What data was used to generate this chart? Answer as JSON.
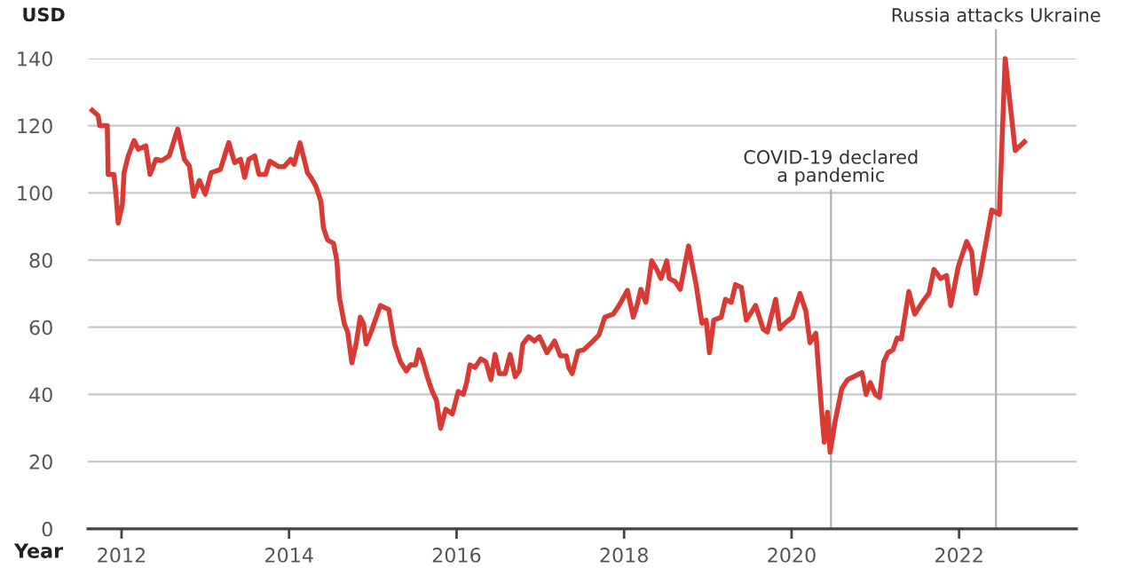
{
  "chart_data": {
    "type": "line",
    "xlabel": "Year",
    "ylabel": "USD",
    "x": [
      2011.65,
      2011.72,
      2011.74,
      2011.83,
      2011.84,
      2011.91,
      2011.94,
      2011.96,
      2012.01,
      2012.03,
      2012.08,
      2012.15,
      2012.2,
      2012.29,
      2012.34,
      2012.41,
      2012.48,
      2012.57,
      2012.67,
      2012.75,
      2012.81,
      2012.86,
      2012.93,
      2013.0,
      2013.07,
      2013.18,
      2013.28,
      2013.35,
      2013.42,
      2013.47,
      2013.52,
      2013.59,
      2013.64,
      2013.72,
      2013.77,
      2013.88,
      2013.94,
      2014.02,
      2014.06,
      2014.13,
      2014.18,
      2014.22,
      2014.26,
      2014.32,
      2014.38,
      2014.41,
      2014.46,
      2014.53,
      2014.57,
      2014.6,
      2014.66,
      2014.7,
      2014.75,
      2014.8,
      2014.85,
      2014.89,
      2014.92,
      2014.98,
      2015.09,
      2015.19,
      2015.26,
      2015.33,
      2015.4,
      2015.45,
      2015.51,
      2015.55,
      2015.6,
      2015.65,
      2015.71,
      2015.76,
      2015.81,
      2015.87,
      2015.95,
      2016.02,
      2016.08,
      2016.12,
      2016.16,
      2016.22,
      2016.29,
      2016.35,
      2016.41,
      2016.46,
      2016.51,
      2016.58,
      2016.64,
      2016.7,
      2016.75,
      2016.79,
      2016.86,
      2016.93,
      2016.99,
      2017.08,
      2017.17,
      2017.24,
      2017.31,
      2017.34,
      2017.38,
      2017.45,
      2017.52,
      2017.63,
      2017.7,
      2017.77,
      2017.87,
      2017.94,
      2018.04,
      2018.11,
      2018.16,
      2018.2,
      2018.26,
      2018.33,
      2018.39,
      2018.44,
      2018.51,
      2018.54,
      2018.61,
      2018.67,
      2018.77,
      2018.86,
      2018.93,
      2018.98,
      2019.02,
      2019.07,
      2019.16,
      2019.21,
      2019.28,
      2019.33,
      2019.4,
      2019.46,
      2019.57,
      2019.66,
      2019.71,
      2019.81,
      2019.86,
      2019.92,
      2020.01,
      2020.1,
      2020.17,
      2020.22,
      2020.29,
      2020.36,
      2020.39,
      2020.43,
      2020.46,
      2020.52,
      2020.6,
      2020.67,
      2020.84,
      2020.89,
      2020.94,
      2021.0,
      2021.05,
      2021.1,
      2021.15,
      2021.21,
      2021.26,
      2021.31,
      2021.4,
      2021.47,
      2021.56,
      2021.64,
      2021.7,
      2021.78,
      2021.85,
      2021.9,
      2021.99,
      2022.09,
      2022.15,
      2022.2,
      2022.25,
      2022.39,
      2022.48,
      2022.55,
      2022.67,
      2022.78
    ],
    "series": [
      {
        "color": "#d93b34",
        "values": [
          124.6,
          123,
          120,
          120,
          105.5,
          105.5,
          97.5,
          91,
          96.6,
          106,
          111,
          115.6,
          113,
          114,
          105.5,
          110,
          109.6,
          111,
          119,
          110,
          108,
          99,
          103.7,
          99.6,
          106,
          107,
          115,
          109,
          110,
          104.6,
          110,
          111,
          105.5,
          105.5,
          109.4,
          107.8,
          107.8,
          110,
          108.5,
          114.9,
          110,
          106,
          104.6,
          102,
          97.5,
          89.6,
          86,
          85,
          80,
          69,
          61,
          58.6,
          49.4,
          55,
          63,
          61,
          55,
          58.6,
          66.5,
          65.3,
          55,
          49.7,
          47,
          48.8,
          48.8,
          53.3,
          49.7,
          45.3,
          40.9,
          38.2,
          29.9,
          35.6,
          34.2,
          40.9,
          40,
          43.5,
          48.8,
          48,
          50.6,
          49.7,
          44.4,
          51.9,
          46.2,
          46.2,
          51.9,
          45.3,
          47,
          55,
          57.2,
          55.9,
          57.2,
          52.4,
          55.9,
          51.5,
          51.5,
          48,
          46.2,
          52.9,
          53.3,
          55.9,
          57.7,
          63,
          63.9,
          66.5,
          71,
          63,
          67,
          71.3,
          67.4,
          79.8,
          77.2,
          74.5,
          79.8,
          74.5,
          73.6,
          71.3,
          84.2,
          72.7,
          61.2,
          62.1,
          52.4,
          62.1,
          63,
          68.3,
          67.4,
          72.7,
          71.9,
          62.1,
          66.5,
          59.5,
          58.6,
          68.3,
          59.5,
          61.2,
          63,
          70.1,
          64.8,
          55.4,
          58.2,
          34.7,
          25.8,
          34.7,
          22.8,
          32,
          41.8,
          44.4,
          46.5,
          40,
          43.5,
          40,
          39.1,
          49.7,
          52.4,
          53.3,
          56.8,
          56.5,
          70.6,
          63.9,
          67.4,
          70.1,
          77.2,
          74.5,
          75.4,
          66.5,
          78,
          85.5,
          82.5,
          70.1,
          75.4,
          94.9,
          93.6,
          140,
          112.6,
          115.2
        ]
      }
    ],
    "xlim": [
      2011.6,
      2023.4
    ],
    "ylim": [
      0,
      140
    ],
    "xticks": [
      2012,
      2014,
      2016,
      2018,
      2020,
      2022
    ],
    "yticks": [
      0,
      20,
      40,
      60,
      80,
      100,
      120,
      140
    ],
    "grid": "y",
    "marker": "none",
    "line_style": "solid",
    "ref_lines": [
      {
        "axis": "x",
        "value": 2020.47,
        "label": "COVID-19 declared\na pandemic",
        "color": "#b0b0b0",
        "line_style": "solid"
      },
      {
        "axis": "x",
        "value": 2022.44,
        "label": "Russia attacks Ukraine",
        "color": "#b0b0b0",
        "line_style": "solid"
      }
    ]
  }
}
